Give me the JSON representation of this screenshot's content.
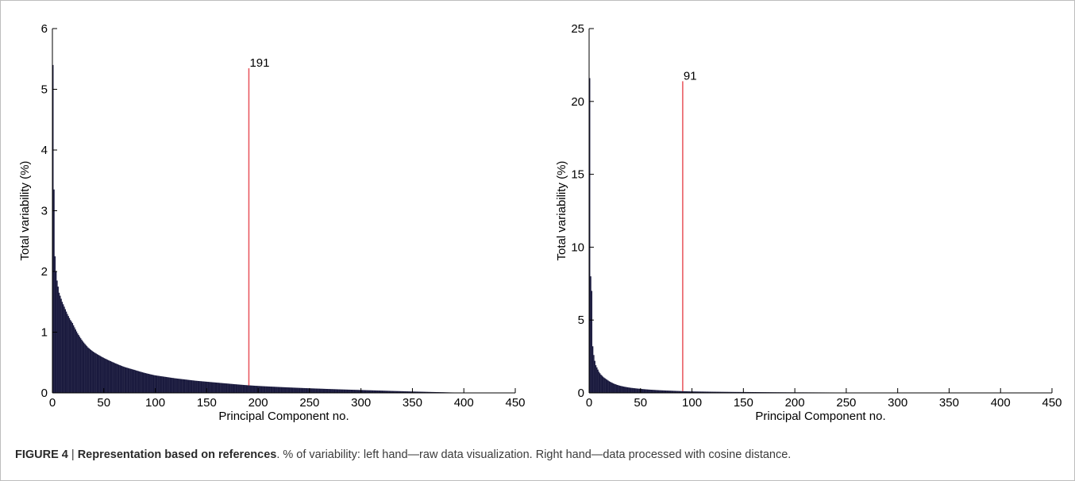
{
  "chart_data": [
    {
      "type": "bar",
      "xlabel": "Principal Component no.",
      "ylabel": "Total variability (%)",
      "xlim": [
        0,
        450
      ],
      "ylim": [
        0,
        6
      ],
      "xticks": [
        0,
        50,
        100,
        150,
        200,
        250,
        300,
        350,
        400,
        450
      ],
      "yticks": [
        0,
        1,
        2,
        3,
        4,
        5,
        6
      ],
      "grid": false,
      "bar_color": "#1a1a3e",
      "marker_color": "#e8525a",
      "annotation": {
        "x": 191,
        "label": "191"
      },
      "series": [
        {
          "x": [
            1,
            2,
            3,
            4,
            5,
            6,
            7,
            8,
            9,
            10,
            12,
            15,
            18,
            20,
            25,
            30,
            35,
            40,
            50,
            60,
            70,
            80,
            90,
            100,
            110,
            120,
            130,
            140,
            150,
            160,
            170,
            180,
            191,
            200,
            220,
            240,
            260,
            280,
            300,
            320,
            340,
            360,
            380,
            400,
            410
          ],
          "values": [
            5.4,
            3.35,
            2.25,
            2.0,
            1.85,
            1.75,
            1.65,
            1.6,
            1.55,
            1.5,
            1.42,
            1.3,
            1.2,
            1.15,
            0.98,
            0.85,
            0.75,
            0.68,
            0.58,
            0.5,
            0.43,
            0.38,
            0.33,
            0.29,
            0.265,
            0.24,
            0.22,
            0.2,
            0.185,
            0.17,
            0.155,
            0.14,
            0.125,
            0.115,
            0.098,
            0.083,
            0.07,
            0.058,
            0.048,
            0.038,
            0.028,
            0.019,
            0.011,
            0.004,
            0.001
          ]
        }
      ]
    },
    {
      "type": "bar",
      "xlabel": "Principal Component no.",
      "ylabel": "Total variability (%)",
      "xlim": [
        0,
        450
      ],
      "ylim": [
        0,
        25
      ],
      "xticks": [
        0,
        50,
        100,
        150,
        200,
        250,
        300,
        350,
        400,
        450
      ],
      "yticks": [
        0,
        5,
        10,
        15,
        20,
        25
      ],
      "grid": false,
      "bar_color": "#1a1a3e",
      "marker_color": "#e8525a",
      "annotation": {
        "x": 91,
        "label": "91"
      },
      "series": [
        {
          "x": [
            1,
            2,
            3,
            4,
            5,
            6,
            7,
            8,
            9,
            10,
            12,
            15,
            18,
            20,
            25,
            30,
            35,
            40,
            50,
            60,
            70,
            80,
            91,
            100,
            120,
            140,
            160,
            180,
            200,
            250,
            300,
            350,
            400,
            450
          ],
          "values": [
            21.6,
            8.0,
            7.0,
            3.2,
            2.6,
            2.2,
            1.9,
            1.75,
            1.6,
            1.45,
            1.25,
            1.05,
            0.9,
            0.8,
            0.62,
            0.5,
            0.42,
            0.36,
            0.28,
            0.22,
            0.18,
            0.15,
            0.12,
            0.1,
            0.08,
            0.065,
            0.055,
            0.045,
            0.038,
            0.025,
            0.015,
            0.008,
            0.004,
            0.001
          ]
        }
      ]
    }
  ],
  "caption": {
    "label": "FIGURE 4",
    "separator": " | ",
    "title": "Representation based on references",
    "text": ". % of variability: left hand—raw data visualization. Right hand—data processed with cosine distance."
  }
}
